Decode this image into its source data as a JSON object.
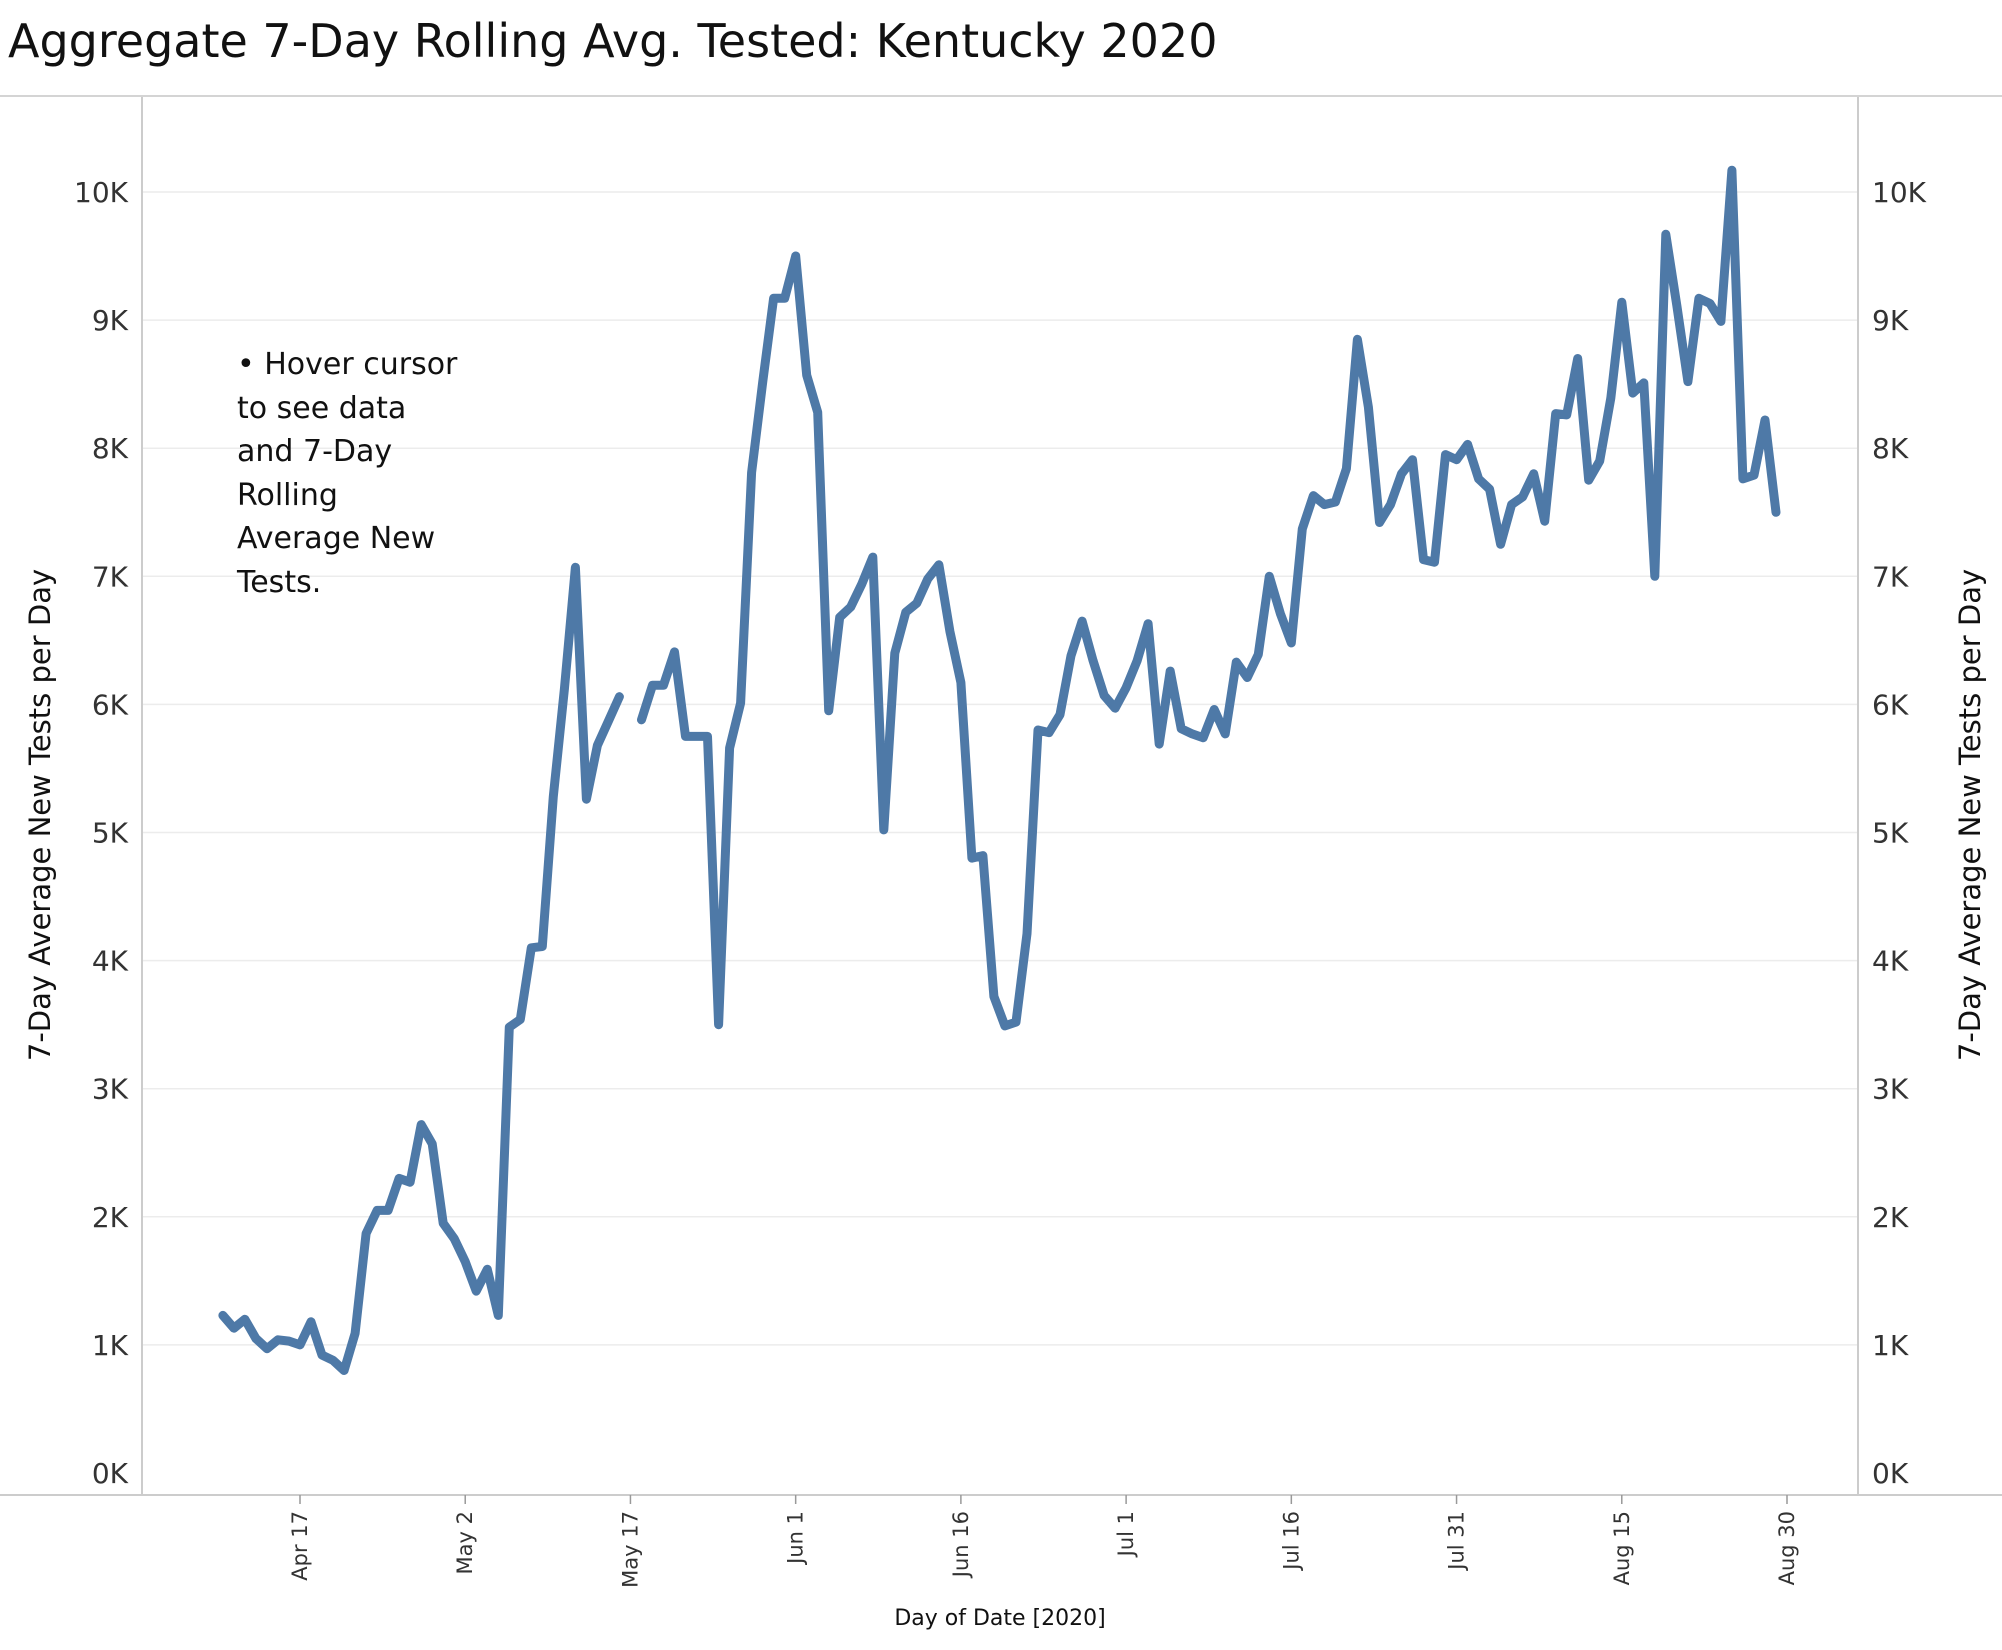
{
  "title": "Aggregate 7-Day Rolling Avg. Tested:  Kentucky 2020",
  "annotation": {
    "lines": [
      "• Hover cursor",
      "to see data",
      "and 7-Day",
      "Rolling",
      "Average New",
      "Tests."
    ]
  },
  "colors": {
    "line": "#4e79a7",
    "grid": "#ececec",
    "axis": "#cccccc"
  },
  "chart_data": {
    "type": "line",
    "title": "Aggregate 7-Day Rolling Avg. Tested:  Kentucky 2020",
    "xlabel": "Day of Date [2020]",
    "ylabel_left": "7-Day Average New Tests per Day",
    "ylabel_right": "7-Day Average New Tests per Day",
    "ylim": [
      0,
      10500
    ],
    "xlim": [
      "2020-03-31",
      "2020-09-03"
    ],
    "yticks": [
      0,
      1000,
      2000,
      3000,
      4000,
      5000,
      6000,
      7000,
      8000,
      9000,
      10000
    ],
    "ytick_labels": [
      "0K",
      "1K",
      "2K",
      "3K",
      "4K",
      "5K",
      "6K",
      "7K",
      "8K",
      "9K",
      "10K"
    ],
    "xticks": [
      "2020-04-17",
      "2020-05-02",
      "2020-05-17",
      "2020-06-01",
      "2020-06-16",
      "2020-07-01",
      "2020-07-16",
      "2020-07-31",
      "2020-08-15",
      "2020-08-30"
    ],
    "xtick_labels": [
      "Apr 17",
      "May 2",
      "May 17",
      "Jun 1",
      "Jun 16",
      "Jul 1",
      "Jul 16",
      "Jul 31",
      "Aug 15",
      "Aug 30"
    ],
    "grid": true,
    "series": [
      {
        "segments": [
          {
            "start_date": "2020-04-10",
            "values": [
              1230,
              1130,
              1200,
              1050,
              970,
              1040,
              1030,
              1000,
              1180,
              920,
              880,
              800,
              1090,
              1870,
              2050,
              2050,
              2300,
              2270,
              2720,
              2570,
              1950,
              1830,
              1650,
              1420,
              1590,
              1230,
              3480,
              3540,
              4100,
              4110,
              5280,
              6120,
              7070,
              5260,
              5680,
              5870,
              6060
            ]
          },
          {
            "start_date": "2020-05-18",
            "values": [
              5880,
              6150,
              6150,
              6410,
              5750,
              5750,
              5750,
              3500,
              5660,
              6010,
              7810,
              8510,
              9170,
              9170,
              9500,
              8570,
              8280,
              5950,
              6680,
              6760,
              6940,
              7150,
              5020,
              6400,
              6720,
              6790,
              6980,
              7090,
              6570,
              6170,
              4800,
              4820,
              3720,
              3490,
              3520,
              4210,
              5800,
              5780,
              5920,
              6380,
              6650,
              6340,
              6070,
              5970,
              6130,
              6340,
              6630,
              5690,
              6260,
              5810,
              5770,
              5740,
              5960,
              5770,
              6330,
              6210,
              6390,
              7000,
              6710,
              6480,
              7370,
              7630,
              7560,
              7580,
              7840,
              8850,
              8320,
              7420,
              7560,
              7800,
              7910,
              7130,
              7110,
              7950,
              7910,
              8030,
              7760,
              7680,
              7250,
              7560,
              7620,
              7800,
              7430,
              8270,
              8260,
              8700,
              7750,
              7900,
              8390,
              9140,
              8430,
              8510,
              7000,
              9670,
              9110,
              8520,
              9170,
              9130,
              8990,
              10170,
              7760,
              7790,
              8220,
              7500
            ]
          }
        ]
      }
    ]
  }
}
